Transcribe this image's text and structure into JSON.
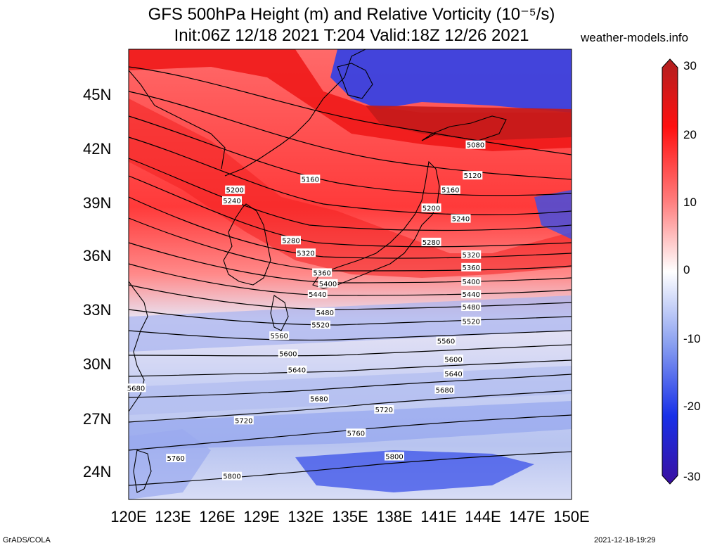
{
  "title": {
    "line1": "GFS 500hPa Height (m) and Relative Vorticity (10⁻⁵/s)",
    "line2": "Init:06Z 12/18 2021 T:204 Valid:18Z 12/26 2021"
  },
  "site": "weather-models.info",
  "footer": {
    "left": "GrADS/COLA",
    "right": "2021-12-18-19:29"
  },
  "map": {
    "lon_range": [
      120,
      150
    ],
    "lat_range": [
      22.5,
      47.5
    ],
    "lon_ticks": [
      "120E",
      "123E",
      "126E",
      "129E",
      "132E",
      "135E",
      "138E",
      "141E",
      "144E",
      "147E",
      "150E"
    ],
    "lat_ticks": [
      "24N",
      "27N",
      "30N",
      "33N",
      "36N",
      "39N",
      "42N",
      "45N"
    ],
    "contours": [
      {
        "value": "5080",
        "label_lon": 143.5,
        "label_lat": 42.2
      },
      {
        "value": "5120",
        "label_lon": 143.3,
        "label_lat": 40.5
      },
      {
        "value": "5160",
        "label_lon": 132.3,
        "label_lat": 40.3
      },
      {
        "value": "5200",
        "label_lon": 127.2,
        "label_lat": 39.7
      },
      {
        "value": "5240",
        "label_lon": 127.0,
        "label_lat": 39.1
      },
      {
        "value": "5280",
        "label_lon": 131.0,
        "label_lat": 36.9
      },
      {
        "value": "5320",
        "label_lon": 132.0,
        "label_lat": 36.2
      },
      {
        "value": "5360",
        "label_lon": 133.1,
        "label_lat": 35.1
      },
      {
        "value": "5400",
        "label_lon": 133.5,
        "label_lat": 34.5
      },
      {
        "value": "5440",
        "label_lon": 132.8,
        "label_lat": 33.9
      },
      {
        "value": "5480",
        "label_lon": 133.3,
        "label_lat": 32.9
      },
      {
        "value": "5520",
        "label_lon": 133.0,
        "label_lat": 32.2
      },
      {
        "value": "5560",
        "label_lon": 130.2,
        "label_lat": 31.6
      },
      {
        "value": "5600",
        "label_lon": 130.8,
        "label_lat": 30.6
      },
      {
        "value": "5640",
        "label_lon": 131.4,
        "label_lat": 29.7
      },
      {
        "value": "5680",
        "label_lon": 120.5,
        "label_lat": 28.7
      },
      {
        "value": "5720",
        "label_lon": 127.8,
        "label_lat": 26.9
      },
      {
        "value": "5760",
        "label_lon": 123.2,
        "label_lat": 24.8
      },
      {
        "value": "5800",
        "label_lon": 127.0,
        "label_lat": 23.8
      }
    ],
    "extra_labels": [
      {
        "value": "5160",
        "label_lon": 141.8,
        "label_lat": 39.7
      },
      {
        "value": "5200",
        "label_lon": 140.5,
        "label_lat": 38.7
      },
      {
        "value": "5240",
        "label_lon": 142.5,
        "label_lat": 38.1
      },
      {
        "value": "5280",
        "label_lon": 140.5,
        "label_lat": 36.8
      },
      {
        "value": "5320",
        "label_lon": 143.2,
        "label_lat": 36.1
      },
      {
        "value": "5360",
        "label_lon": 143.2,
        "label_lat": 35.4
      },
      {
        "value": "5400",
        "label_lon": 143.2,
        "label_lat": 34.6
      },
      {
        "value": "5440",
        "label_lon": 143.2,
        "label_lat": 33.9
      },
      {
        "value": "5480",
        "label_lon": 143.2,
        "label_lat": 33.2
      },
      {
        "value": "5520",
        "label_lon": 143.2,
        "label_lat": 32.4
      },
      {
        "value": "5560",
        "label_lon": 141.5,
        "label_lat": 31.3
      },
      {
        "value": "5600",
        "label_lon": 142.0,
        "label_lat": 30.3
      },
      {
        "value": "5640",
        "label_lon": 142.0,
        "label_lat": 29.5
      },
      {
        "value": "5680",
        "label_lon": 141.4,
        "label_lat": 28.6
      },
      {
        "value": "5680",
        "label_lon": 132.9,
        "label_lat": 28.1
      },
      {
        "value": "5720",
        "label_lon": 137.3,
        "label_lat": 27.5
      },
      {
        "value": "5760",
        "label_lon": 135.4,
        "label_lat": 26.2
      },
      {
        "value": "5800",
        "label_lon": 138.0,
        "label_lat": 24.9
      }
    ]
  },
  "colorbar": {
    "ticks": [
      "30",
      "20",
      "10",
      "0",
      "-10",
      "-20",
      "-30"
    ],
    "range": [
      -30,
      30
    ],
    "colors": {
      "max": "#b02020",
      "high": "#ff1010",
      "mid_high": "#ff7a7a",
      "zero": "#ffffff",
      "mid_low": "#8aa0f0",
      "low": "#1830e8",
      "min": "#3a10a0"
    }
  }
}
